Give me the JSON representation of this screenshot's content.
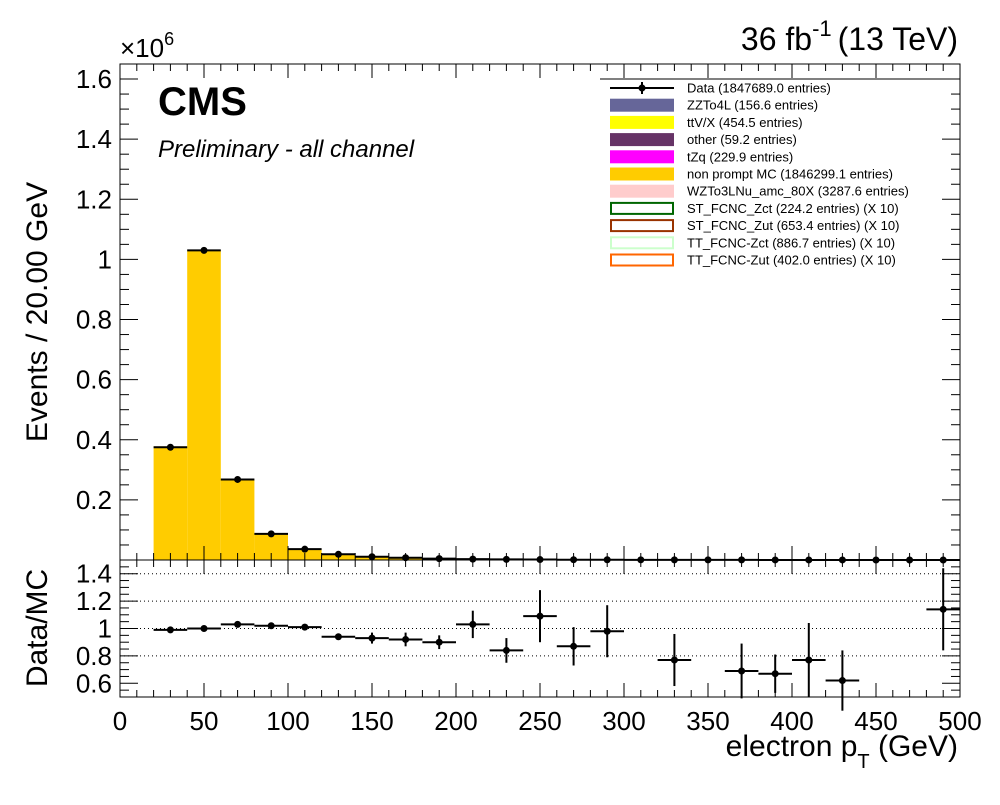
{
  "header": {
    "lumi": "36 fb",
    "lumi_exp": "-1",
    "energy": "(13 TeV)",
    "multiplier": "×10",
    "multiplier_exp": "6",
    "cms": "CMS",
    "subtitle": "Preliminary - all channel"
  },
  "colors": {
    "nonprompt": "#ffcc00",
    "ZZTo4L": "#666699",
    "ttVX": "#ffff00",
    "other": "#663366",
    "tZq": "#ff00ff",
    "WZ": "#ffcccc",
    "ST_Zct": "#006600",
    "ST_Zut": "#993300",
    "TT_Zct": "#ccffcc",
    "TT_Zut": "#ff6600"
  },
  "legend": [
    {
      "label": "Data (1847689.0 entries)",
      "kind": "data",
      "color": "#000000"
    },
    {
      "label": "ZZTo4L (156.6 entries)",
      "kind": "fill",
      "color": "#666699"
    },
    {
      "label": "ttV/X (454.5 entries)",
      "kind": "fill",
      "color": "#ffff00"
    },
    {
      "label": "other (59.2 entries)",
      "kind": "fill",
      "color": "#663366"
    },
    {
      "label": "tZq (229.9 entries)",
      "kind": "fill",
      "color": "#ff00ff"
    },
    {
      "label": "non prompt MC (1846299.1 entries)",
      "kind": "fill",
      "color": "#ffcc00"
    },
    {
      "label": "WZTo3LNu_amc_80X (3287.6 entries)",
      "kind": "fill",
      "color": "#ffcccc"
    },
    {
      "label": "ST_FCNC_Zct (224.2 entries) (X 10)",
      "kind": "line",
      "color": "#006600"
    },
    {
      "label": "ST_FCNC_Zut (653.4 entries) (X 10)",
      "kind": "line",
      "color": "#993300"
    },
    {
      "label": "TT_FCNC-Zct (886.7 entries) (X 10)",
      "kind": "line",
      "color": "#ccffcc"
    },
    {
      "label": "TT_FCNC-Zut (402.0 entries) (X 10)",
      "kind": "line",
      "color": "#ff6600"
    }
  ],
  "chart_data": [
    {
      "type": "bar",
      "title": "",
      "ylabel": "Events / 20.00 GeV",
      "xlabel": "",
      "xlim": [
        0,
        500
      ],
      "ylim": [
        0,
        1.65
      ],
      "y_scale_note": "×10^6",
      "y_ticks": [
        0.2,
        0.4,
        0.6,
        0.8,
        1,
        1.2,
        1.4,
        1.6
      ],
      "y_tick_labels": [
        "0.2",
        "0.4",
        "0.6",
        "0.8",
        "1",
        "1.2",
        "1.4",
        "1.6"
      ],
      "bin_edges": [
        20,
        40,
        60,
        80,
        100,
        120,
        140,
        160,
        180,
        200,
        220,
        240,
        260,
        280,
        300,
        320,
        340,
        360,
        380,
        400,
        420,
        440,
        460,
        480,
        500
      ],
      "series": [
        {
          "name": "non prompt MC",
          "kind": "stack",
          "values": [
            0.378,
            1.03,
            0.268,
            0.087,
            0.037,
            0.02,
            0.012,
            0.008,
            0.005,
            0.003,
            0.002,
            0.0015,
            0.001,
            0.0008,
            0.0006,
            0.0005,
            0.0004,
            0.0003,
            0.0002,
            0.0002,
            0.00015,
            0.0001,
            0.0001,
            0.0001
          ]
        },
        {
          "name": "Data",
          "kind": "points",
          "values": [
            0.375,
            1.03,
            0.268,
            0.087,
            0.036,
            0.019,
            0.011,
            0.0075,
            0.0045,
            0.003,
            0.002,
            0.0015,
            0.001,
            0.0008,
            0.0006,
            0.0005,
            0.0004,
            0.0003,
            0.0002,
            0.0002,
            0.00015,
            0.0001,
            0.0001,
            0.0001
          ]
        }
      ]
    },
    {
      "type": "scatter",
      "title": "",
      "ylabel": "Data/MC",
      "xlabel": "electron p_T  (GeV)",
      "xlim": [
        0,
        500
      ],
      "ylim": [
        0.5,
        1.5
      ],
      "y_ticks": [
        0.6,
        0.8,
        1,
        1.2,
        1.4
      ],
      "y_tick_labels": [
        "0.6",
        "0.8",
        "1",
        "1.2",
        "1.4"
      ],
      "grid_y": [
        0.8,
        1,
        1.2,
        1.4
      ],
      "x_ticks": [
        0,
        50,
        100,
        150,
        200,
        250,
        300,
        350,
        400,
        450,
        500
      ],
      "x_tick_labels": [
        "0",
        "50",
        "100",
        "150",
        "200",
        "250",
        "300",
        "350",
        "400",
        "450",
        "500"
      ],
      "points": [
        {
          "x": 30,
          "y": 0.99,
          "err": 0.005
        },
        {
          "x": 50,
          "y": 1.0,
          "err": 0.003
        },
        {
          "x": 70,
          "y": 1.03,
          "err": 0.006
        },
        {
          "x": 90,
          "y": 1.02,
          "err": 0.01
        },
        {
          "x": 110,
          "y": 1.01,
          "err": 0.015
        },
        {
          "x": 130,
          "y": 0.94,
          "err": 0.02
        },
        {
          "x": 150,
          "y": 0.93,
          "err": 0.04
        },
        {
          "x": 170,
          "y": 0.92,
          "err": 0.05
        },
        {
          "x": 190,
          "y": 0.9,
          "err": 0.05
        },
        {
          "x": 210,
          "y": 1.03,
          "err": 0.1
        },
        {
          "x": 230,
          "y": 0.84,
          "err": 0.09
        },
        {
          "x": 250,
          "y": 1.09,
          "err": 0.19
        },
        {
          "x": 270,
          "y": 0.87,
          "err": 0.14
        },
        {
          "x": 290,
          "y": 0.98,
          "err": 0.19
        },
        {
          "x": 330,
          "y": 0.77,
          "err": 0.19
        },
        {
          "x": 370,
          "y": 0.69,
          "err": 0.2
        },
        {
          "x": 390,
          "y": 0.67,
          "err": 0.14
        },
        {
          "x": 410,
          "y": 0.77,
          "err": 0.27
        },
        {
          "x": 430,
          "y": 0.62,
          "err": 0.22
        },
        {
          "x": 490,
          "y": 1.14,
          "err": 0.3
        }
      ]
    }
  ]
}
